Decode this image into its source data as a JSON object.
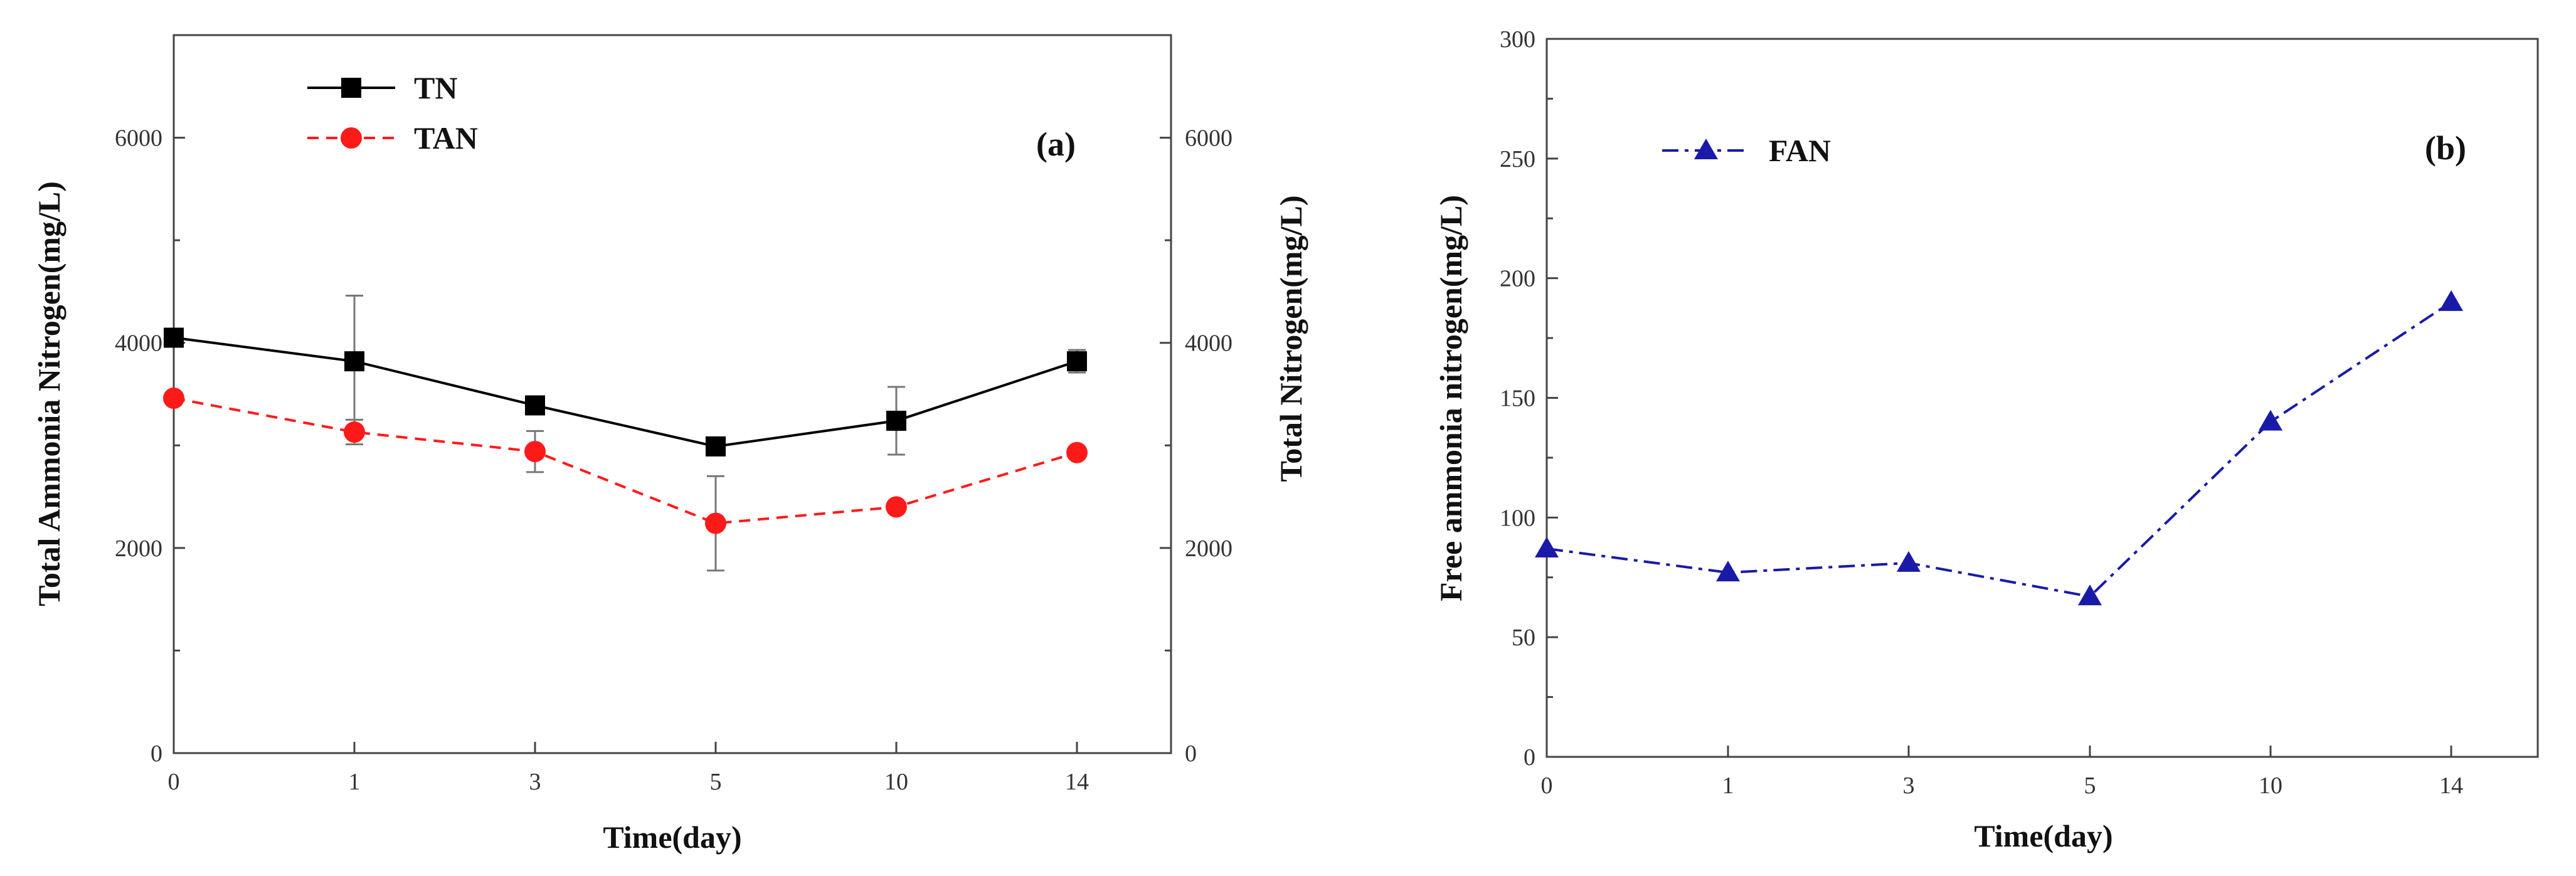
{
  "chart_data": [
    {
      "type": "line",
      "panel_label": "(a)",
      "xlabel": "Time(day)",
      "ylabel_left": "Total Ammonia Nitrogen(mg/L)",
      "ylabel_right": "Total Nitrogen(mg/L)",
      "categories": [
        "0",
        "1",
        "3",
        "5",
        "10",
        "14"
      ],
      "ylim": [
        0,
        7000
      ],
      "yticks": [
        "0",
        "2000",
        "4000",
        "6000"
      ],
      "yticks_right": [
        "0",
        "2000",
        "4000",
        "6000"
      ],
      "legend_position": "top-left",
      "series": [
        {
          "name": "TN",
          "axis": "right",
          "color": "#000000",
          "marker": "square",
          "linestyle": "solid",
          "values": [
            4050,
            3820,
            3390,
            2990,
            3240,
            3820
          ],
          "errors": [
            0,
            640,
            0,
            0,
            330,
            110
          ]
        },
        {
          "name": "TAN",
          "axis": "left",
          "color": "#ff1a1a",
          "marker": "circle",
          "linestyle": "dashed",
          "values": [
            3460,
            3130,
            2940,
            2240,
            2400,
            2930
          ],
          "errors": [
            0,
            120,
            200,
            460,
            0,
            0
          ]
        }
      ]
    },
    {
      "type": "line",
      "panel_label": "(b)",
      "xlabel": "Time(day)",
      "ylabel": "Free ammonia nitrogen(mg/L)",
      "categories": [
        "0",
        "1",
        "3",
        "5",
        "10",
        "14"
      ],
      "ylim": [
        0,
        300
      ],
      "yticks": [
        "0",
        "50",
        "100",
        "150",
        "200",
        "250",
        "300"
      ],
      "legend_position": "top-left",
      "series": [
        {
          "name": "FAN",
          "color": "#1a1aa8",
          "marker": "triangle",
          "linestyle": "dashdot",
          "values": [
            87,
            77,
            81,
            67,
            140,
            190
          ]
        }
      ]
    }
  ]
}
